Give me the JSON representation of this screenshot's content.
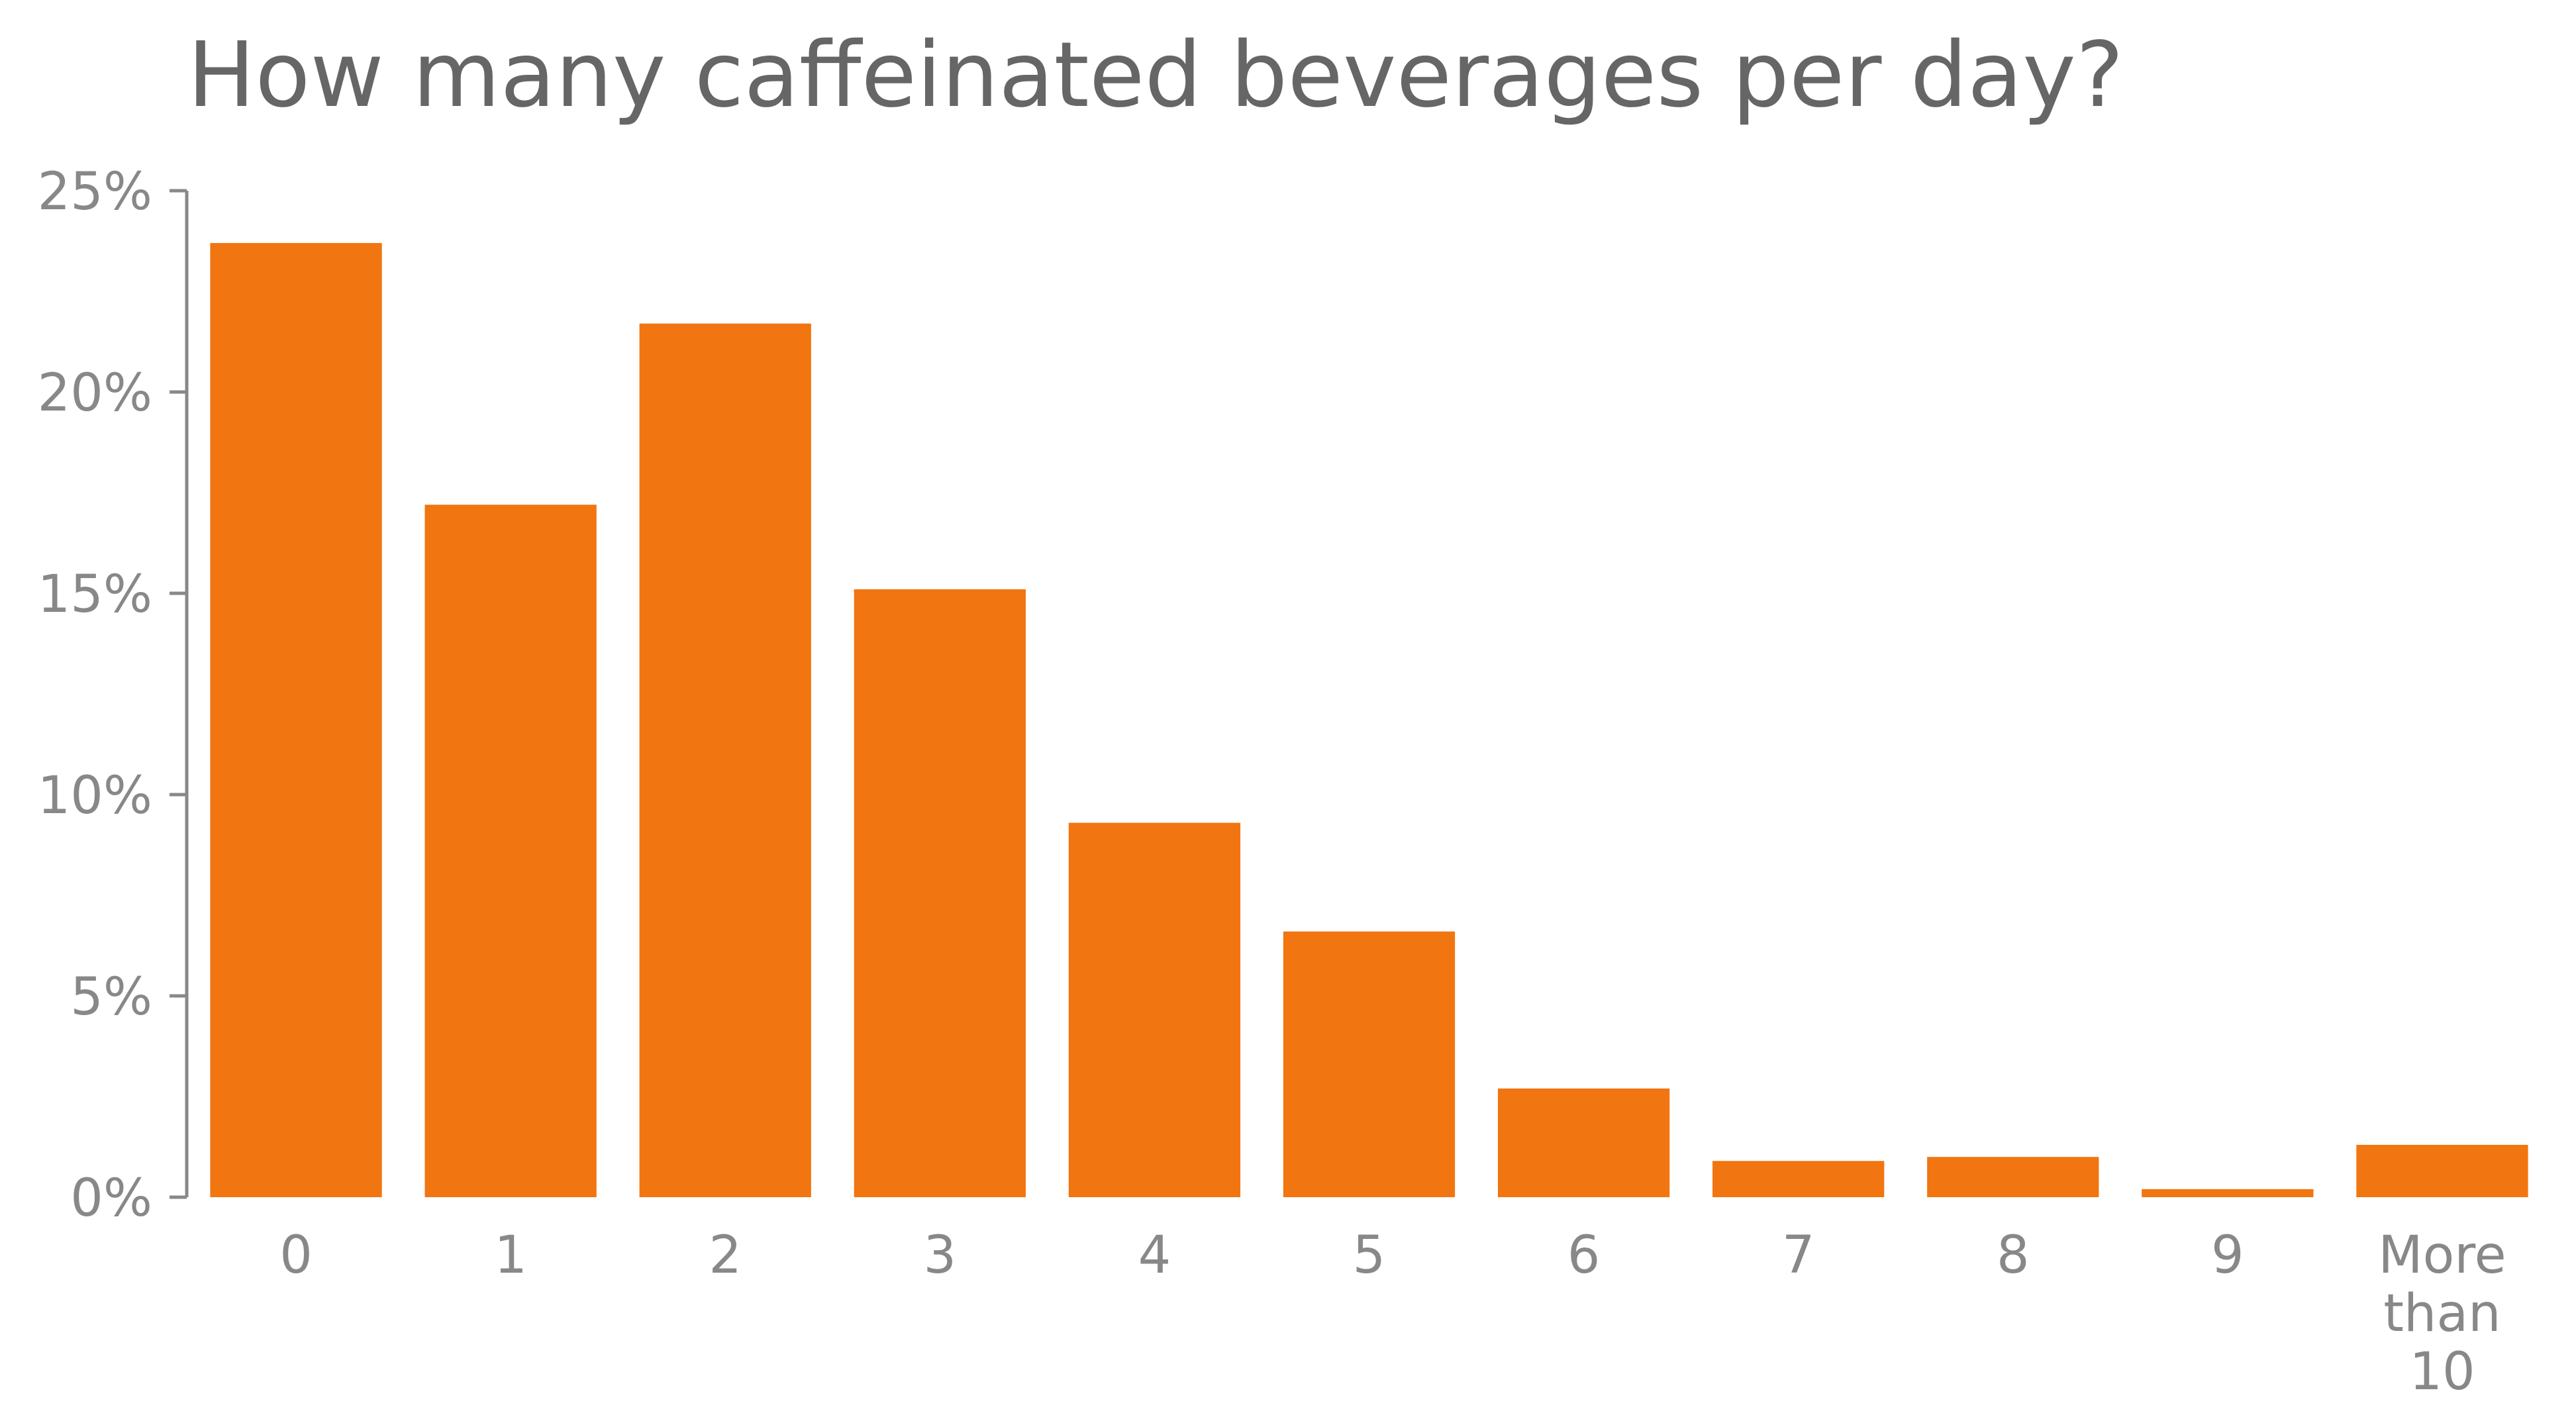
{
  "chart_data": {
    "type": "bar",
    "title": "How many caffeinated beverages per day?",
    "xlabel": "",
    "ylabel": "",
    "categories": [
      [
        "0"
      ],
      [
        "1"
      ],
      [
        "2"
      ],
      [
        "3"
      ],
      [
        "4"
      ],
      [
        "5"
      ],
      [
        "6"
      ],
      [
        "7"
      ],
      [
        "8"
      ],
      [
        "9"
      ],
      [
        "More",
        "than",
        "10"
      ]
    ],
    "values": [
      23.7,
      17.2,
      21.7,
      15.1,
      9.3,
      6.6,
      2.7,
      0.9,
      1.0,
      0.2,
      1.3
    ],
    "ylim": [
      0,
      25
    ],
    "yticks": [
      0,
      5,
      10,
      15,
      20,
      25
    ],
    "ytick_labels": [
      "0%",
      "5%",
      "10%",
      "15%",
      "20%",
      "25%"
    ],
    "grid": false,
    "legend": "none",
    "bar_color": "#f17510",
    "text_color": "#888888",
    "title_color": "#666666"
  }
}
